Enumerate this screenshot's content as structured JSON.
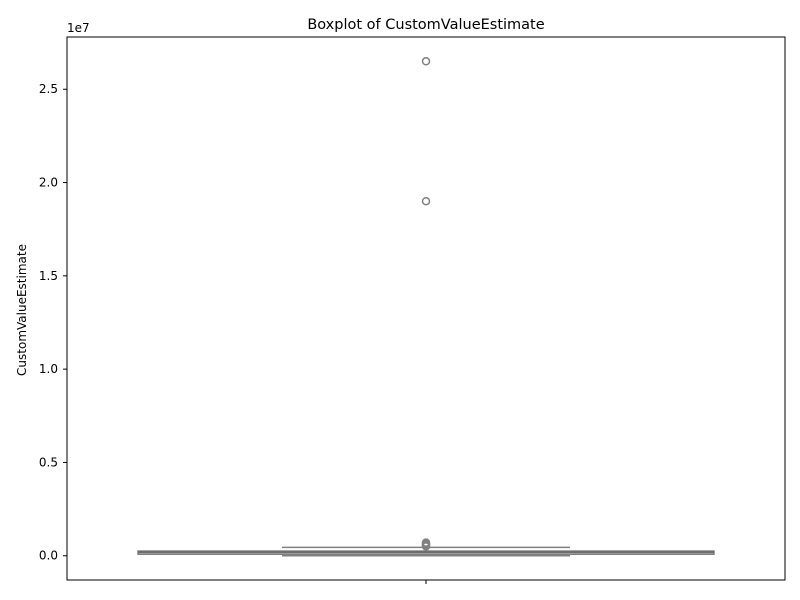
{
  "chart_data": {
    "type": "box",
    "title": "Boxplot of CustomValueEstimate",
    "xlabel": "",
    "ylabel": "CustomValueEstimate",
    "y_offset_text": "1e7",
    "ylim": [
      -1300000,
      27800000
    ],
    "yticks": [
      0,
      5000000,
      10000000,
      15000000,
      20000000,
      25000000
    ],
    "ytick_labels": [
      "0.0",
      "0.5",
      "1.0",
      "1.5",
      "2.0",
      "2.5"
    ],
    "xtick_labels": [
      ""
    ],
    "grid": false,
    "colors": {
      "box": "#808080",
      "median": "#6e6e6e",
      "axis": "#000000"
    },
    "box": {
      "whisker_low": 0,
      "q1": 80000,
      "median": 200000,
      "q3": 250000,
      "whisker_high": 450000,
      "outliers": [
        26500000,
        19000000,
        700000,
        650000,
        600000,
        550000,
        500000
      ]
    }
  }
}
